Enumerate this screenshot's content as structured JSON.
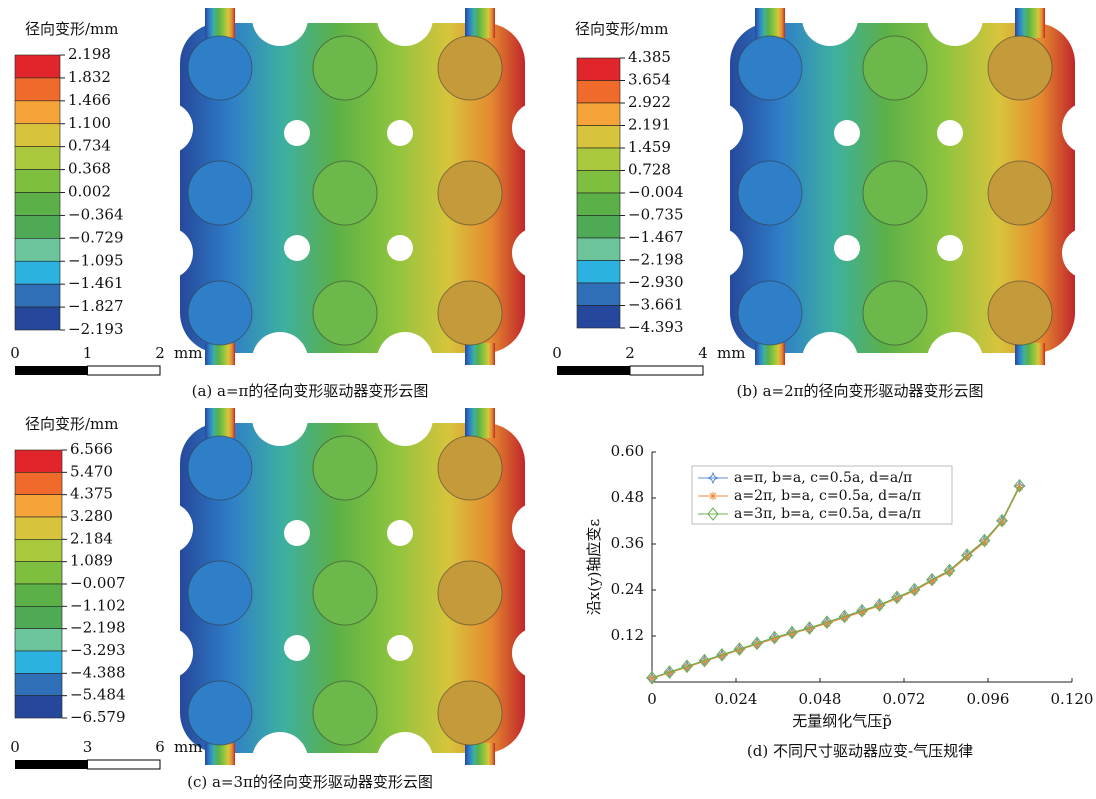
{
  "colormap": [
    "#e0262a",
    "#f06a2c",
    "#f5a43a",
    "#d8c43c",
    "#a9c83e",
    "#7fbf3f",
    "#5cb048",
    "#4faa55",
    "#6cc49a",
    "#2cb2e0",
    "#2f6fb8",
    "#26489c"
  ],
  "panels": [
    {
      "colorbar_title": "径向变形/mm",
      "colorbar_labels": [
        "2.198",
        "1.832",
        "1.466",
        "1.100",
        "0.734",
        "0.368",
        "0.002",
        "−0.364",
        "−0.729",
        "−1.095",
        "−1.461",
        "−1.827",
        "−2.193"
      ],
      "scale_ticks": [
        0,
        1,
        2
      ],
      "scale_unit": "mm",
      "caption": "(a) a=π的径向变形驱动器变形云图"
    },
    {
      "colorbar_title": "径向变形/mm",
      "colorbar_labels": [
        "4.385",
        "3.654",
        "2.922",
        "2.191",
        "1.459",
        "0.728",
        "−0.004",
        "−0.735",
        "−1.467",
        "−2.198",
        "−2.930",
        "−3.661",
        "−4.393"
      ],
      "scale_ticks": [
        0,
        2,
        4
      ],
      "scale_unit": "mm",
      "caption": "(b) a=2π的径向变形驱动器变形云图"
    },
    {
      "colorbar_title": "径向变形/mm",
      "colorbar_labels": [
        "6.566",
        "5.470",
        "4.375",
        "3.280",
        "2.184",
        "1.089",
        "−0.007",
        "−1.102",
        "−2.198",
        "−3.293",
        "−4.388",
        "−5.484",
        "−6.579"
      ],
      "scale_ticks": [
        0,
        3,
        6
      ],
      "scale_unit": "mm",
      "caption": "(c) a=3π的径向变形驱动器变形云图"
    }
  ],
  "chart_data": {
    "type": "line",
    "caption": "(d) 不同尺寸驱动器应变-气压规律",
    "x_label": "无量纲化气压p̃",
    "y_label": "沿x(y)轴应变ε",
    "x": [
      0,
      0.005,
      0.01,
      0.015,
      0.02,
      0.025,
      0.03,
      0.035,
      0.04,
      0.045,
      0.05,
      0.055,
      0.06,
      0.065,
      0.07,
      0.075,
      0.08,
      0.085,
      0.09,
      0.095,
      0.1,
      0.105
    ],
    "series": [
      {
        "name": "a=π, b=a, c=0.5a, d=a/π",
        "color": "#5b8fd6",
        "marker": "star",
        "values": [
          0.01,
          0.025,
          0.04,
          0.055,
          0.07,
          0.085,
          0.1,
          0.115,
          0.128,
          0.14,
          0.155,
          0.17,
          0.185,
          0.2,
          0.22,
          0.24,
          0.266,
          0.29,
          0.33,
          0.368,
          0.42,
          0.51
        ]
      },
      {
        "name": "a=2π, b=a, c=0.5a, d=a/π",
        "color": "#f0883c",
        "marker": "asterisk",
        "values": [
          0.01,
          0.024,
          0.039,
          0.054,
          0.069,
          0.084,
          0.099,
          0.113,
          0.127,
          0.139,
          0.153,
          0.168,
          0.183,
          0.199,
          0.218,
          0.238,
          0.264,
          0.288,
          0.327,
          0.365,
          0.418,
          0.508
        ]
      },
      {
        "name": "a=3π, b=a, c=0.5a, d=a/π",
        "color": "#6ab04c",
        "marker": "diamond",
        "values": [
          0.011,
          0.026,
          0.041,
          0.056,
          0.071,
          0.086,
          0.101,
          0.116,
          0.129,
          0.141,
          0.156,
          0.171,
          0.186,
          0.201,
          0.221,
          0.241,
          0.267,
          0.291,
          0.331,
          0.369,
          0.421,
          0.512
        ]
      }
    ],
    "xlim": [
      0,
      0.12
    ],
    "xticks": [
      0,
      0.024,
      0.048,
      0.072,
      0.096,
      {
        "value": 0.12,
        "label": "0.120"
      }
    ],
    "ylim": [
      0,
      0.6
    ],
    "yticks": [
      0.12,
      0.24,
      0.36,
      0.48,
      {
        "value": 0.6,
        "label": "0.60"
      }
    ],
    "legend": "upper-left"
  }
}
